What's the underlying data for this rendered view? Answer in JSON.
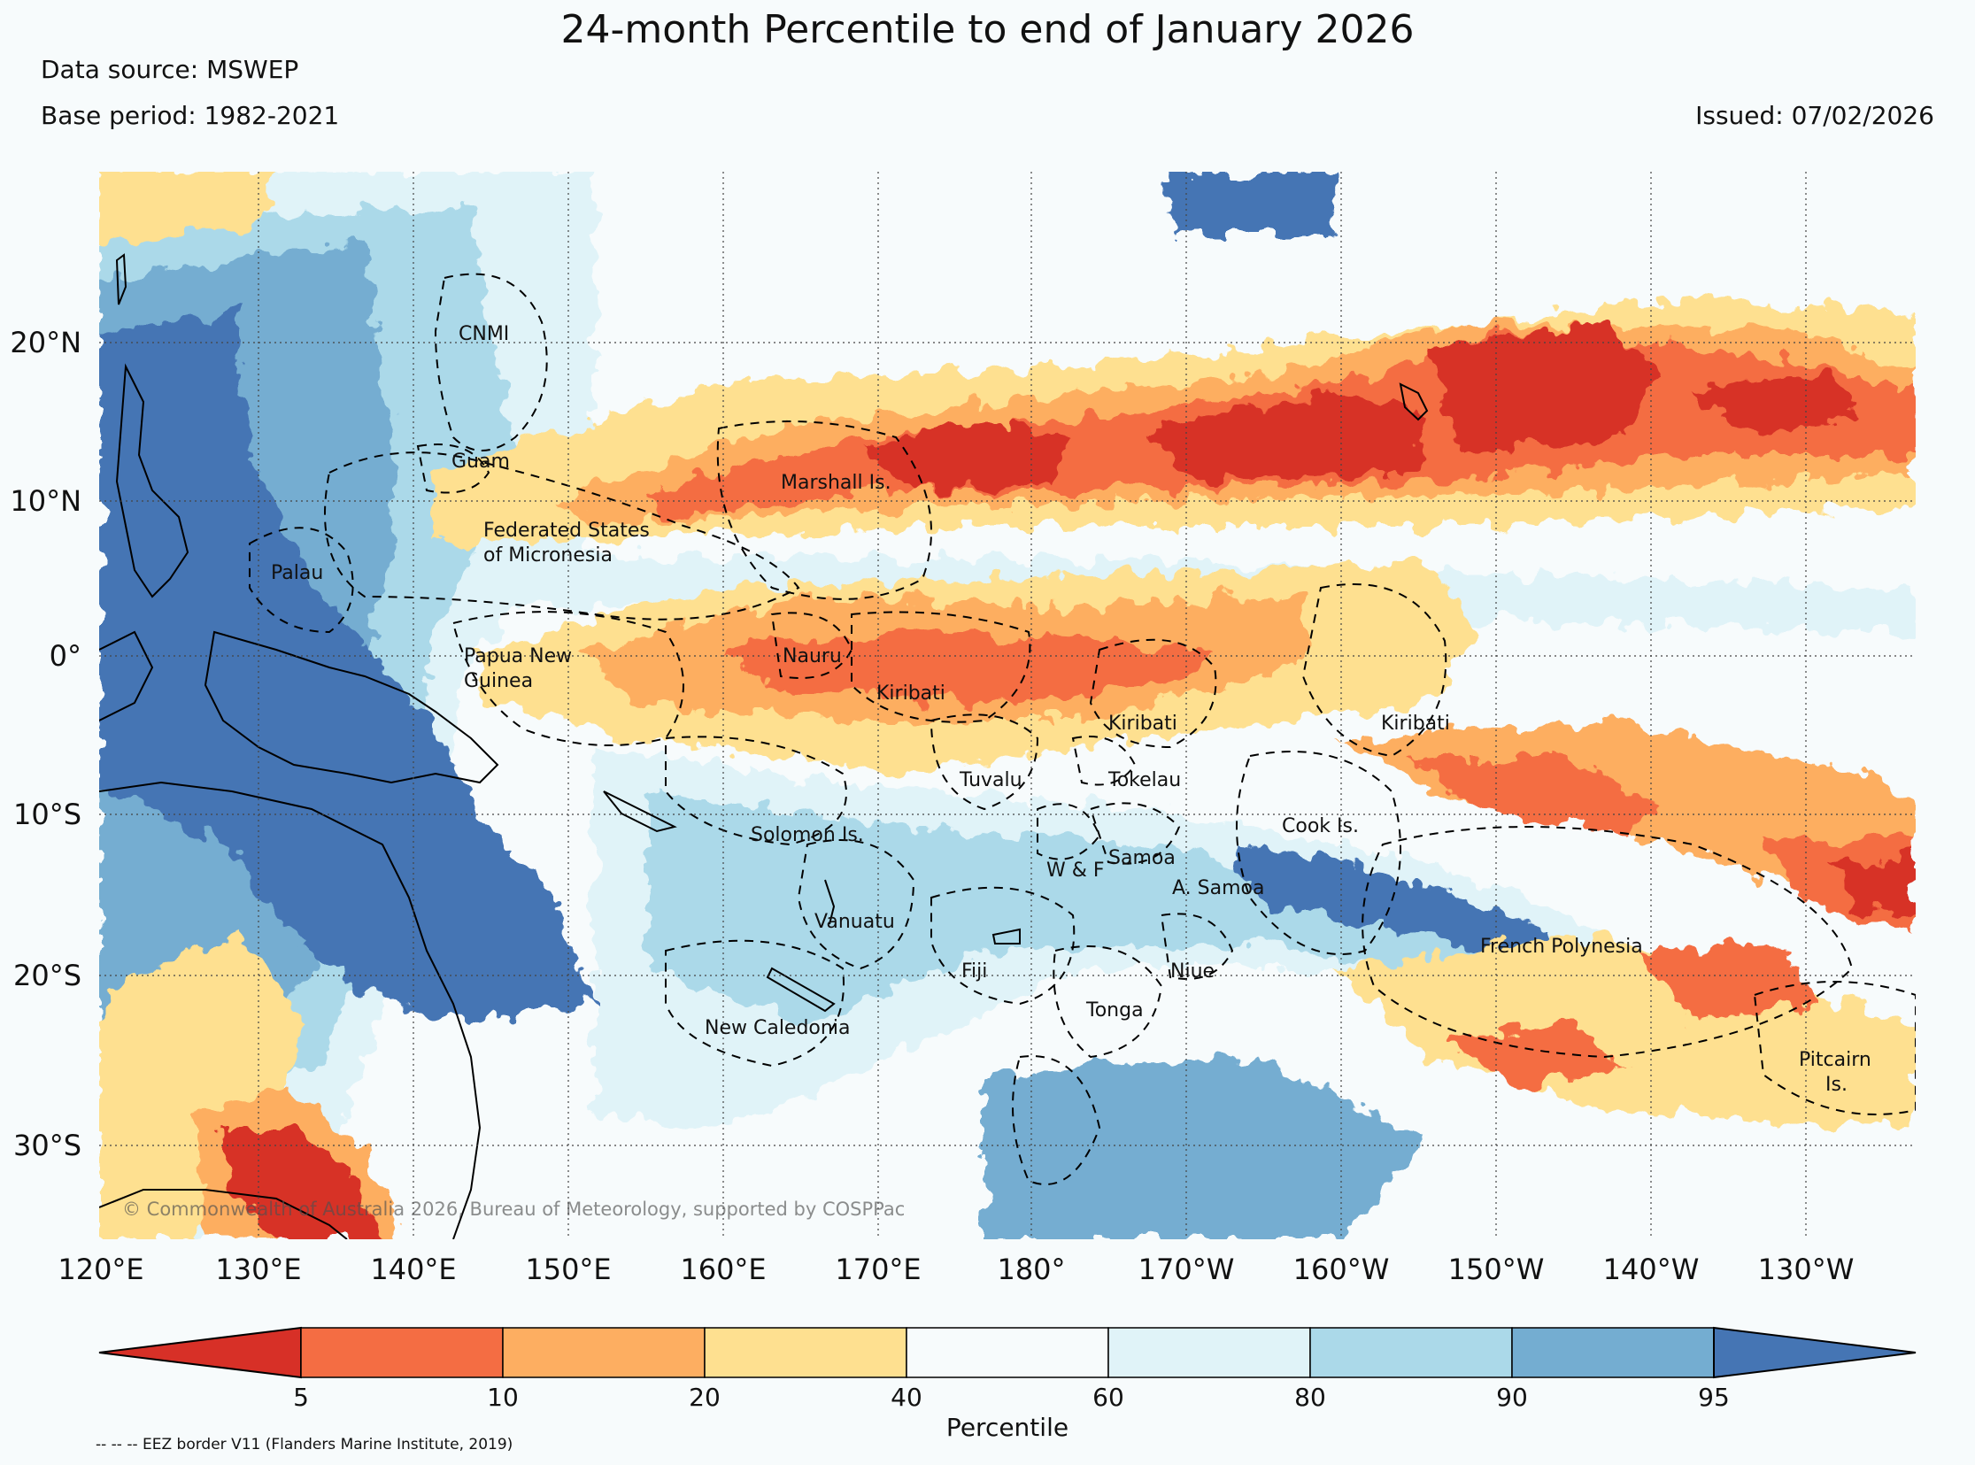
{
  "header": {
    "title": "24-month Percentile to end of January 2026",
    "data_source": "Data source: MSWEP",
    "base_period": "Base period: 1982-2021",
    "issued": "Issued: 07/02/2026"
  },
  "map": {
    "lat_labels": [
      "20°N",
      "10°N",
      "0°",
      "10°S",
      "20°S",
      "30°S"
    ],
    "lon_labels": [
      "120°E",
      "130°E",
      "140°E",
      "150°E",
      "160°E",
      "170°E",
      "180°",
      "170°W",
      "160°W",
      "150°W",
      "140°W",
      "130°W"
    ],
    "countries": {
      "cnmi": "CNMI",
      "guam": "Guam",
      "marshall": "Marshall Is.",
      "fsm_line1": "Federated States",
      "fsm_line2": "of Micronesia",
      "palau": "Palau",
      "png_line1": "Papua New",
      "png_line2": "Guinea",
      "nauru": "Nauru",
      "kiribati_w": "Kiribati",
      "kiribati_c": "Kiribati",
      "kiribati_e": "Kiribati",
      "tuvalu": "Tuvalu",
      "tokelau": "Tokelau",
      "solomon": "Solomon Is.",
      "cook": "Cook Is.",
      "samoa": "Samoa",
      "wf": "W & F",
      "asamoa": "A. Samoa",
      "vanuatu": "Vanuatu",
      "fiji": "Fiji",
      "niue": "Niue",
      "tonga": "Tonga",
      "new_caledonia": "New Caledonia",
      "french_polynesia": "French Polynesia",
      "pitcairn_line1": "Pitcairn",
      "pitcairn_line2": "Is."
    },
    "copyright": "© Commonwealth of Australia 2026, Bureau of Meteorology, supported by COSPPac"
  },
  "colorbar": {
    "title": "Percentile",
    "tick_labels": [
      "5",
      "10",
      "20",
      "40",
      "60",
      "80",
      "90",
      "95"
    ],
    "colors": {
      "lt5": "#d73027",
      "b5_10": "#f46d43",
      "b10_20": "#fdae61",
      "b20_40": "#fee090",
      "b40_60": "#f7fbfc",
      "b60_80": "#e0f3f8",
      "b80_90": "#abd9e9",
      "b90_95": "#74add1",
      "gt95": "#4575b4"
    }
  },
  "footnote": "-- -- -- EEZ border V11 (Flanders Marine Institute, 2019)"
}
